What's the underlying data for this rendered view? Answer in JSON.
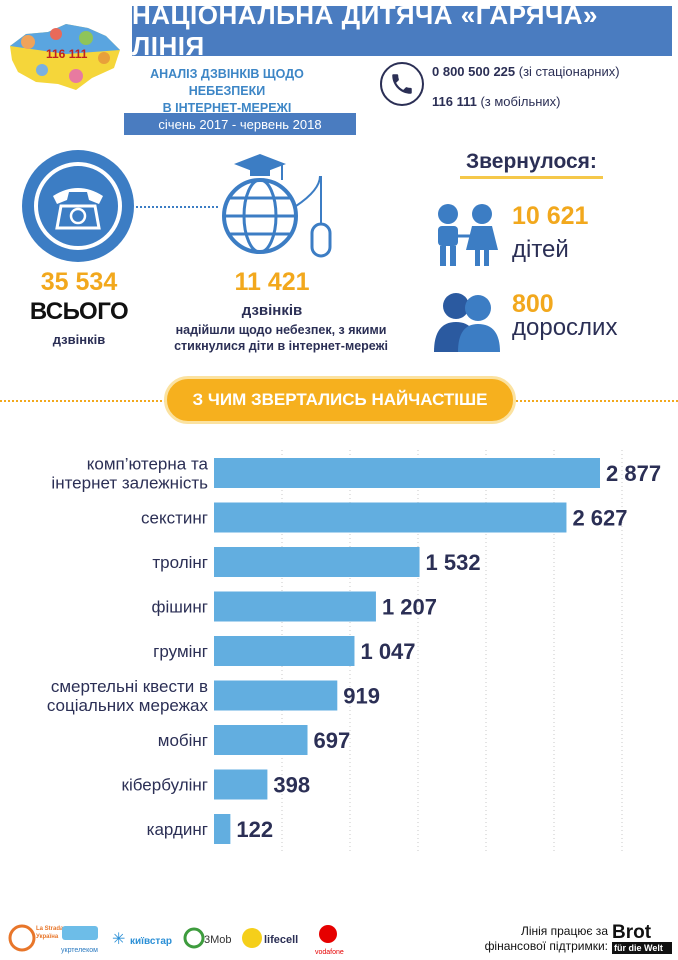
{
  "header": {
    "title": "НАЦІОНАЛЬНА ДИТЯЧА «ГАРЯЧА» ЛІНІЯ",
    "subtitle_line1": "АНАЛІЗ ДЗВІНКІВ ЩОДО НЕБЕЗПЕКИ",
    "subtitle_line2": "В ІНТЕРНЕТ-МЕРЕЖІ",
    "period": "січень 2017 - червень 2018",
    "logo_text": "116 111",
    "phone1_number": "0 800 500 225",
    "phone1_note": "(зі стаціонарних)",
    "phone2_number": "116 111",
    "phone2_note": "(з мобільних)"
  },
  "stats": {
    "total_number": "35 534",
    "total_word": "ВСЬОГО",
    "total_sub": "дзвінків",
    "internet_number": "11 421",
    "internet_word": "дзвінків",
    "internet_desc_line1": "надійшли щодо небезпек, з якими",
    "internet_desc_line2": "стикнулися діти в інтернет-мережі",
    "applied_heading": "Звернулося:",
    "children_number": "10 621",
    "children_word": "дітей",
    "adults_number": "800",
    "adults_word": "дорослих"
  },
  "section": {
    "heading": "З ЧИМ ЗВЕРТАЛИСЬ НАЙЧАСТІШЕ"
  },
  "chart_data": {
    "type": "bar",
    "orientation": "horizontal",
    "categories": [
      [
        "комп’ютерна та",
        "інтернет залежність"
      ],
      [
        "секстинг"
      ],
      [
        "тролінг"
      ],
      [
        "фішинг"
      ],
      [
        "грумінг"
      ],
      [
        "смертельні квести в",
        "соціальних мережах"
      ],
      [
        "мобінг"
      ],
      [
        "кібербулінг"
      ],
      [
        "кардинг"
      ]
    ],
    "values": [
      2877,
      2627,
      1532,
      1207,
      1047,
      919,
      697,
      398,
      122
    ],
    "value_labels": [
      "2 877",
      "2 627",
      "1 532",
      "1 207",
      "1 047",
      "919",
      "697",
      "398",
      "122"
    ],
    "xlim": [
      0,
      2877
    ],
    "grid": "dotted vertical",
    "bar_color": "#62aee0",
    "value_color": "#2b2f55"
  },
  "footer": {
    "support_line1": "Лінія працює за",
    "support_line2": "фінансової підтримки:",
    "partners": [
      "La Strada Україна",
      "укртелеком",
      "київстар",
      "3Mob",
      "lifecell",
      "vodafone"
    ],
    "brot_line1": "Brot",
    "brot_line2": "für die Welt"
  },
  "colors": {
    "header_blue": "#4a7cc0",
    "accent_orange": "#f2a81d",
    "dark_navy": "#2b2f55",
    "icon_blue": "#3c7dc4"
  }
}
